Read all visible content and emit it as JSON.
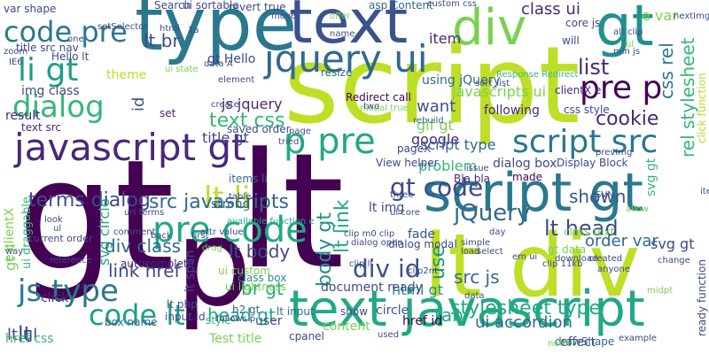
{
  "words": [
    {
      "text": "gt",
      "color": "#440154"
    },
    {
      "text": "lt",
      "color": "#440154"
    },
    {
      "text": "script",
      "color": "#bddf26"
    },
    {
      "text": "p",
      "color": "#440154"
    },
    {
      "text": "type",
      "color": "#2a788e"
    },
    {
      "text": "text",
      "color": "#3b528b"
    },
    {
      "text": "lt div",
      "color": "#bddf26"
    },
    {
      "text": "script gt",
      "color": "#2a788e"
    },
    {
      "text": "text javascript",
      "color": "#22a884"
    },
    {
      "text": "div",
      "color": "#7ad151"
    },
    {
      "text": "gt",
      "color": "#21918c"
    },
    {
      "text": "jquery ui",
      "color": "#31688e"
    },
    {
      "text": "javascript gt",
      "color": "#482878"
    },
    {
      "text": "code pre",
      "color": "#2a788e"
    },
    {
      "text": "li gt",
      "color": "#1f9e89"
    },
    {
      "text": "dialog",
      "color": "#35b779"
    },
    {
      "text": "p pre",
      "color": "#22a884"
    },
    {
      "text": "script src",
      "color": "#2a788e"
    },
    {
      "text": "pre p",
      "color": "#440154"
    },
    {
      "text": "pre code",
      "color": "#22a884"
    },
    {
      "text": "lt li",
      "color": "#bddf26"
    },
    {
      "text": "gt code",
      "color": "#3e4a89"
    },
    {
      "text": "js type",
      "color": "#2a788e"
    },
    {
      "text": "code lt",
      "color": "#1f9e89"
    },
    {
      "text": "lt",
      "color": "#3e4a89"
    },
    {
      "text": "div id",
      "color": "#3b528b"
    },
    {
      "text": "stylesheet type",
      "color": "#22a884"
    },
    {
      "text": "jQuery",
      "color": "#31688e"
    },
    {
      "text": "text css",
      "color": "#35b779"
    },
    {
      "text": "lt head",
      "color": "#3e4a89"
    },
    {
      "text": "src javascripts",
      "color": "#31688e"
    },
    {
      "text": "terms dialog",
      "color": "#3e4a89"
    },
    {
      "text": "list",
      "color": "#482878"
    },
    {
      "text": "cookie",
      "color": "#482878"
    },
    {
      "text": "rel stylesheet",
      "color": "#35b779"
    },
    {
      "text": "css rel",
      "color": "#2a788e"
    },
    {
      "text": "class ui",
      "color": "#482878"
    },
    {
      "text": "lt br",
      "color": "#3e4a89"
    },
    {
      "text": "gt Hello",
      "color": "#3e4a89"
    },
    {
      "text": "lt body",
      "color": "#3e4a89"
    },
    {
      "text": "link href",
      "color": "#3e4a89"
    },
    {
      "text": "div class",
      "color": "#31688e"
    },
    {
      "text": "svg circle",
      "color": "#22a884"
    },
    {
      "text": "br gt",
      "color": "#22a884"
    },
    {
      "text": "head gt",
      "color": "#22a884"
    },
    {
      "text": "lt ul",
      "color": "#3e4a89"
    },
    {
      "text": "body gt",
      "color": "#21918c"
    },
    {
      "text": "lt link",
      "color": "#22a884"
    },
    {
      "text": "src js",
      "color": "#31688e"
    },
    {
      "text": "ui accordion",
      "color": "#31688e"
    },
    {
      "text": "html gt",
      "color": "#21918c"
    },
    {
      "text": "tab",
      "color": "#22a884"
    },
    {
      "text": "use",
      "color": "#21918c"
    },
    {
      "text": "shown",
      "color": "#3b528b"
    },
    {
      "text": "svg gt",
      "color": "#3e4a89"
    },
    {
      "text": "svg gt",
      "color": "#35b779"
    },
    {
      "text": "title gt",
      "color": "#3e4a89"
    },
    {
      "text": "want",
      "color": "#3b528b"
    },
    {
      "text": "item",
      "color": "#482878"
    },
    {
      "text": "javascripts ui",
      "color": "#7ad151"
    },
    {
      "text": "js jquery",
      "color": "#482878"
    },
    {
      "text": "saved order",
      "color": "#3e4a89"
    },
    {
      "text": "gif gt",
      "color": "#7ad151"
    },
    {
      "text": "google",
      "color": "#482878"
    },
    {
      "text": "problem",
      "color": "#35b779"
    },
    {
      "text": "script type",
      "color": "#31688e"
    },
    {
      "text": "dialog box",
      "color": "#3e4a89"
    },
    {
      "text": "following",
      "color": "#482878"
    },
    {
      "text": "lt img",
      "color": "#3e4a89"
    },
    {
      "text": "Bla bla",
      "color": "#482878"
    },
    {
      "text": "made",
      "color": "#440154"
    },
    {
      "text": "gt data",
      "color": "#7ad151"
    },
    {
      "text": "class text",
      "color": "#7ad151"
    },
    {
      "text": "order var",
      "color": "#31688e"
    },
    {
      "text": "document ready",
      "color": "#3e4a89"
    },
    {
      "text": "circle",
      "color": "#3b528b"
    },
    {
      "text": "effect",
      "color": "#3e4a89"
    },
    {
      "text": "autocomplete",
      "color": "#482878"
    },
    {
      "text": "strong",
      "color": "#31688e"
    },
    {
      "text": "click",
      "color": "#482878"
    },
    {
      "text": "href css",
      "color": "#35b779"
    },
    {
      "text": "user",
      "color": "#3e4a89"
    },
    {
      "text": "cpanel",
      "color": "#3e4a89"
    },
    {
      "text": "show",
      "color": "#3e4a89"
    },
    {
      "text": "dialog modal",
      "color": "#3e4a89"
    },
    {
      "text": "fade",
      "color": "#3b528b"
    },
    {
      "text": "class box",
      "color": "#21918c"
    },
    {
      "text": "ui custom",
      "color": "#7ad151"
    },
    {
      "text": "ui lightness",
      "color": "#7ad151"
    },
    {
      "text": "lt php",
      "color": "#3b528b"
    },
    {
      "text": "input id",
      "color": "#3b528b"
    },
    {
      "text": "box name",
      "color": "#31688e"
    },
    {
      "text": "h2 gt",
      "color": "#31688e"
    },
    {
      "text": "lt input",
      "color": "#31688e"
    },
    {
      "text": "style",
      "color": "#35b779"
    },
    {
      "text": "href id",
      "color": "#440154"
    },
    {
      "text": "content",
      "color": "#7ad151"
    },
    {
      "text": "Test title",
      "color": "#7ad151"
    },
    {
      "text": "result",
      "color": "#482878"
    },
    {
      "text": "img class",
      "color": "#3e4a89"
    },
    {
      "text": "theme",
      "color": "#bddf26"
    },
    {
      "text": "id",
      "color": "#3e4a89"
    },
    {
      "text": "set",
      "color": "#482878"
    },
    {
      "text": "Redirect call",
      "color": "#440154"
    },
    {
      "text": "using jQuery",
      "color": "#31688e"
    },
    {
      "text": "core js",
      "color": "#3e4a89"
    },
    {
      "text": "will",
      "color": "#3e4a89"
    },
    {
      "text": "e var",
      "color": "#7ad151"
    },
    {
      "text": "ui sortable",
      "color": "#3e4a89"
    },
    {
      "text": "Search",
      "color": "#3e4a89"
    },
    {
      "text": "asp Content",
      "color": "#31688e"
    },
    {
      "text": "custom css",
      "color": "#3e4a89"
    },
    {
      "text": "revert true",
      "color": "#3e4a89"
    },
    {
      "text": "var shape",
      "color": "#3e4a89"
    },
    {
      "text": "zoom",
      "color": "#3e4a89"
    },
    {
      "text": "title src nav",
      "color": "#3e4a89"
    },
    {
      "text": "Hello lt",
      "color": "#3e4a89"
    },
    {
      "text": "text src",
      "color": "#482878"
    },
    {
      "text": "clientX e",
      "color": "#482878"
    },
    {
      "text": "pageX",
      "color": "#3e4a89"
    },
    {
      "text": "e clientX",
      "color": "#7ad151"
    },
    {
      "text": "gt li",
      "color": "#7ad151"
    },
    {
      "text": "ui draggable",
      "color": "#35b779"
    },
    {
      "text": "drawShape",
      "color": "#31688e"
    },
    {
      "text": "items li",
      "color": "#31688e"
    },
    {
      "text": "View helper",
      "color": "#3e4a89"
    },
    {
      "text": "click function",
      "color": "#bddf26"
    },
    {
      "text": "ready function",
      "color": "#3e4a89"
    },
    {
      "text": "Response Redirect",
      "color": "#35b779"
    },
    {
      "text": "Display Block",
      "color": "#3e4a89"
    },
    {
      "text": "css style",
      "color": "#3e4a89"
    },
    {
      "text": "resize",
      "color": "#31688e"
    },
    {
      "text": "modal true",
      "color": "#7ad151"
    },
    {
      "text": "rebuild",
      "color": "#31688e"
    },
    {
      "text": "change",
      "color": "#3e4a89"
    },
    {
      "text": "download",
      "color": "#3e4a89"
    },
    {
      "text": "created",
      "color": "#3e4a89"
    },
    {
      "text": "issue",
      "color": "#3e4a89"
    },
    {
      "text": "SVN",
      "color": "#3e4a89"
    },
    {
      "text": "anyone",
      "color": "#3e4a89"
    },
    {
      "text": "back",
      "color": "#3e4a89"
    },
    {
      "text": "first",
      "color": "#3e4a89"
    },
    {
      "text": "attr value",
      "color": "#3e4a89"
    },
    {
      "text": "current order",
      "color": "#3e4a89"
    },
    {
      "text": "available function e",
      "color": "#22a884"
    },
    {
      "text": "em ui",
      "color": "#3e4a89"
    },
    {
      "text": "lt span",
      "color": "#3e4a89"
    },
    {
      "text": "follows p",
      "color": "#3e4a89"
    },
    {
      "text": "table",
      "color": "#3e4a89"
    },
    {
      "text": "drag",
      "color": "#7ad151"
    },
    {
      "text": "page",
      "color": "#3e4a89"
    },
    {
      "text": "three",
      "color": "#3e4a89"
    },
    {
      "text": "ui core",
      "color": "#3e4a89"
    },
    {
      "text": "itemID",
      "color": "#3e4a89"
    },
    {
      "text": "element",
      "color": "#3e4a89"
    },
    {
      "text": "ui state",
      "color": "#7ad151"
    },
    {
      "text": "data A",
      "color": "#3e4a89"
    },
    {
      "text": "min js",
      "color": "#3e4a89"
    },
    {
      "text": "sort_list",
      "color": "#3e4a89"
    },
    {
      "text": "prevImg",
      "color": "#3e4a89"
    },
    {
      "text": "clip m0 clip",
      "color": "#3e4a89"
    },
    {
      "text": "clip lt",
      "color": "#3e4a89"
    },
    {
      "text": "dialog open",
      "color": "#3e4a89"
    },
    {
      "text": "clip2nt",
      "color": "#3e4a89"
    },
    {
      "text": "nextImg",
      "color": "#3e4a89"
    },
    {
      "text": "one",
      "color": "#3e4a89"
    },
    {
      "text": "name",
      "color": "#3e4a89"
    },
    {
      "text": "move",
      "color": "#3e4a89"
    },
    {
      "text": "offer",
      "color": "#7ad151"
    },
    {
      "text": "IE6",
      "color": "#3e4a89"
    },
    {
      "text": "way",
      "color": "#3e4a89"
    },
    {
      "text": "reference",
      "color": "#3e4a89"
    },
    {
      "text": "allow",
      "color": "#7ad151"
    },
    {
      "text": "simple",
      "color": "#3e4a89"
    },
    {
      "text": "load",
      "color": "#3e4a89"
    },
    {
      "text": "select",
      "color": "#3e4a89"
    },
    {
      "text": "tried",
      "color": "#3e4a89"
    },
    {
      "text": "example",
      "color": "#3e4a89"
    },
    {
      "text": "midpt",
      "color": "#7ad151"
    },
    {
      "text": "data",
      "color": "#3e4a89"
    },
    {
      "text": "need",
      "color": "#7ad151"
    },
    {
      "text": "used",
      "color": "#3e4a89"
    },
    {
      "text": "clip 11kb",
      "color": "#3e4a89"
    },
    {
      "text": "two",
      "color": "#3e4a89"
    },
    {
      "text": "alt clip",
      "color": "#3e4a89"
    },
    {
      "text": "setSelector",
      "color": "#3e4a89"
    },
    {
      "text": "ul",
      "color": "#3e4a89"
    },
    {
      "text": "ul",
      "color": "#7ad151"
    },
    {
      "text": "1a",
      "color": "#3e4a89"
    },
    {
      "text": "html",
      "color": "#3e4a89"
    },
    {
      "text": "create",
      "color": "#3e4a89"
    },
    {
      "text": "comment",
      "color": "#3e4a89"
    },
    {
      "text": "day",
      "color": "#3e4a89"
    },
    {
      "text": "look",
      "color": "#3e4a89"
    },
    {
      "text": "url terms",
      "color": "#3e4a89"
    },
    {
      "text": "cross",
      "color": "#3e4a89"
    },
    {
      "text": "1st",
      "color": "#3e4a89"
    }
  ]
}
